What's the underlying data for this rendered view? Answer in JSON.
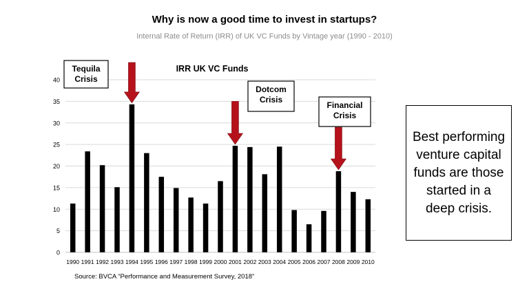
{
  "title": "Why is now a good time to invest in startups?",
  "subtitle": "Internal Rate of Return (IRR) of UK VC Funds by Vintage year (1990 - 2010)",
  "source": "Source: BVCA “Performance and Measurement Survey, 2018”",
  "callout": "Best performing venture capital funds are those started in a deep crisis.",
  "colors": {
    "bar": "#000000",
    "arrow": "#b5121b",
    "grid": "#d9d9d9"
  },
  "chart_data": {
    "type": "bar",
    "title": "IRR UK VC Funds",
    "xlabel": "",
    "ylabel": "",
    "ylim": [
      0,
      40
    ],
    "yticks": [
      0,
      5,
      10,
      15,
      20,
      25,
      30,
      35,
      40
    ],
    "grid": true,
    "categories": [
      "1990",
      "1991",
      "1992",
      "1993",
      "1994",
      "1995",
      "1996",
      "1997",
      "1998",
      "1999",
      "2000",
      "2001",
      "2002",
      "2003",
      "2004",
      "2005",
      "2006",
      "2007",
      "2008",
      "2009",
      "2010"
    ],
    "values": [
      11.3,
      23.4,
      20.2,
      15.1,
      34.3,
      23.0,
      17.5,
      14.9,
      12.7,
      11.3,
      16.5,
      24.7,
      24.4,
      18.1,
      24.5,
      9.8,
      6.5,
      9.6,
      18.8,
      14.0,
      12.3
    ],
    "annotations": [
      {
        "label": "Tequila\nCrisis",
        "category": "1994",
        "arrow_top": 44
      },
      {
        "label": "Dotcom\nCrisis",
        "category": "2001",
        "arrow_top": 35
      },
      {
        "label": "Financial\nCrisis",
        "category": "2008",
        "arrow_top": 29
      }
    ]
  }
}
